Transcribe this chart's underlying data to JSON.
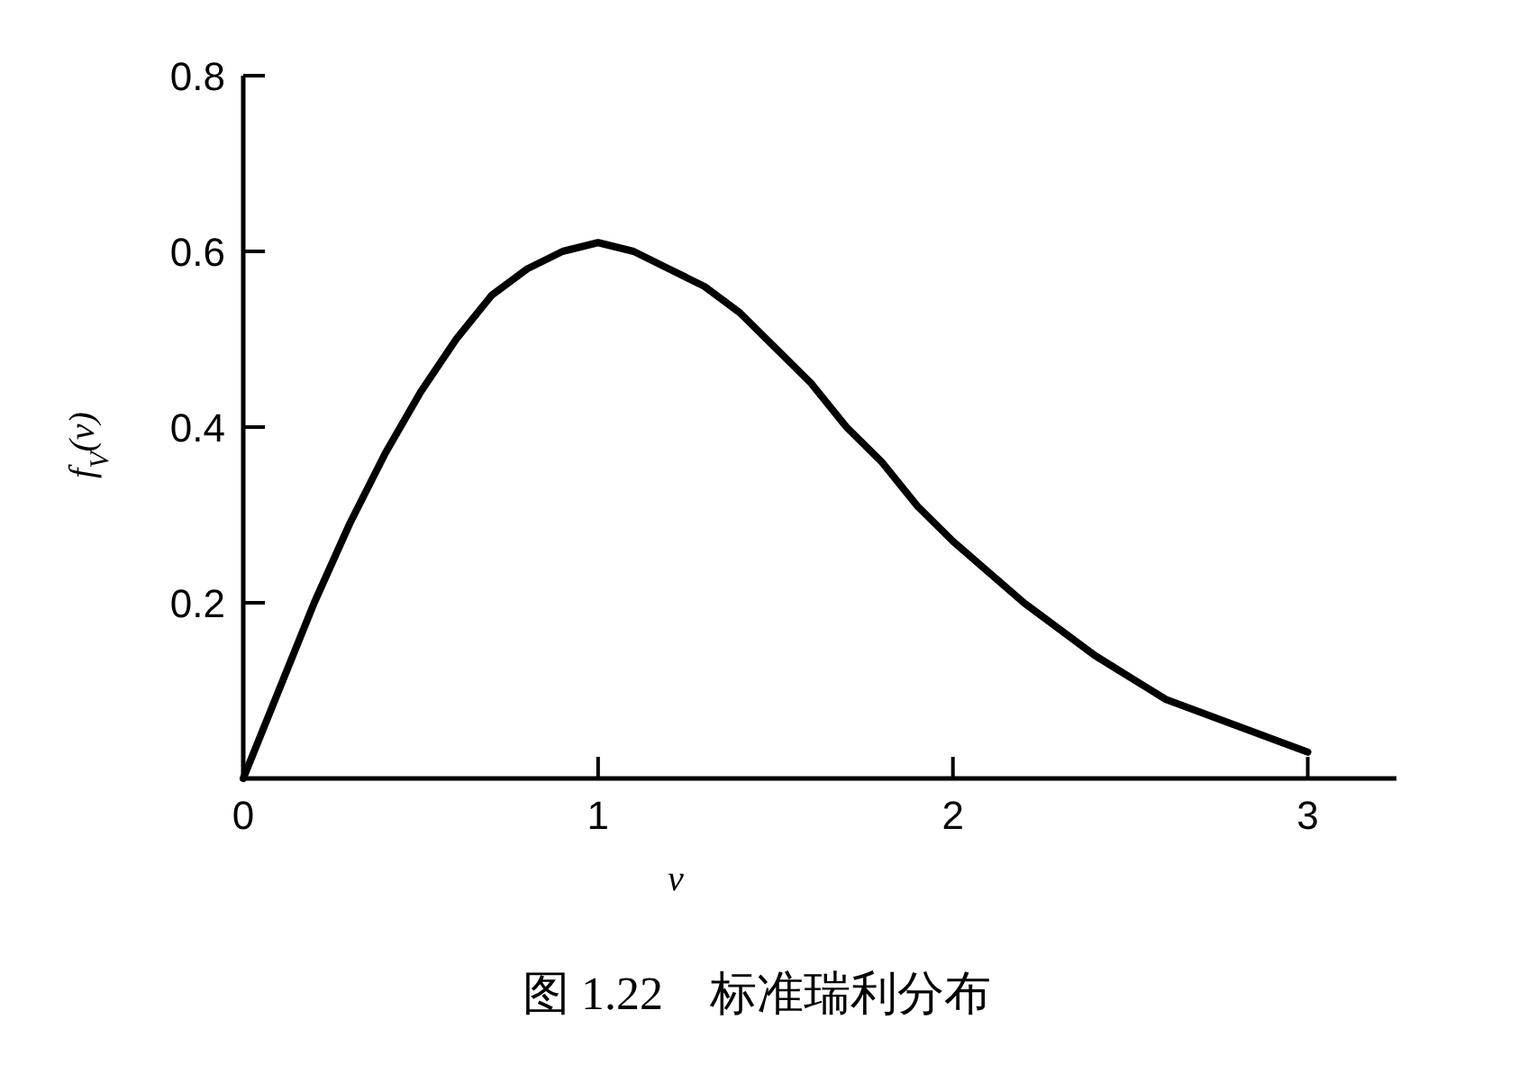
{
  "chart_data": {
    "type": "line",
    "xlabel": "v",
    "ylabel": "f$_{V}$(v)",
    "annotations": [
      "图 1.22　标准瑞利分布"
    ],
    "x": [
      0,
      0.1,
      0.2,
      0.3,
      0.4,
      0.5,
      0.6,
      0.7,
      0.8,
      0.9,
      1.0,
      1.1,
      1.2,
      1.3,
      1.4,
      1.5,
      1.6,
      1.7,
      1.8,
      1.9,
      2.0,
      2.2,
      2.4,
      2.6,
      2.8,
      3.0
    ],
    "values": [
      0,
      0.1,
      0.2,
      0.29,
      0.37,
      0.44,
      0.5,
      0.55,
      0.58,
      0.6,
      0.61,
      0.6,
      0.58,
      0.56,
      0.53,
      0.49,
      0.45,
      0.4,
      0.36,
      0.31,
      0.27,
      0.2,
      0.14,
      0.09,
      0.06,
      0.03
    ],
    "color": "#000000",
    "line_style": "solid",
    "xlim": [
      0,
      3.25
    ],
    "ylim": [
      0,
      0.8
    ],
    "xticks": [
      0,
      1,
      2,
      3
    ],
    "yticks": [
      0.2,
      0.4,
      0.6,
      0.8
    ]
  }
}
